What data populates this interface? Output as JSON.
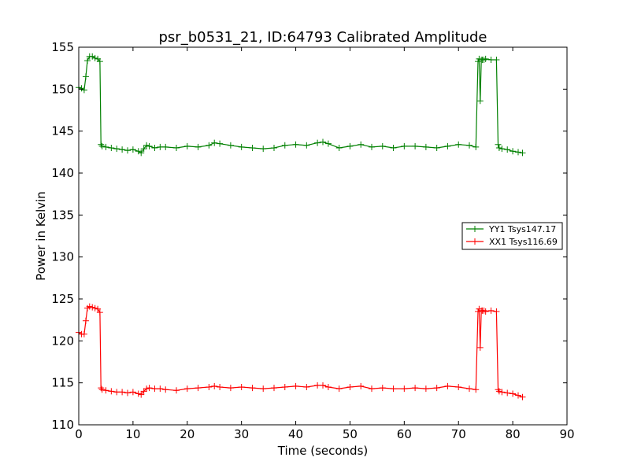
{
  "chart_data": {
    "type": "line",
    "title": "psr_b0531_21, ID:64793 Calibrated Amplitude",
    "xlabel": "Time (seconds)",
    "ylabel": "Power in Kelvin",
    "xlim": [
      0,
      90
    ],
    "ylim": [
      110,
      155
    ],
    "xticks": [
      "0",
      "10",
      "20",
      "30",
      "40",
      "50",
      "60",
      "70",
      "80",
      "90"
    ],
    "yticks": [
      "110",
      "115",
      "120",
      "125",
      "130",
      "135",
      "140",
      "145",
      "150",
      "155"
    ],
    "grid": false,
    "legend_position": "right",
    "series": [
      {
        "name": "YY1 Tsys147.17",
        "color": "#008000",
        "marker": "+",
        "x": [
          0.0,
          0.5,
          1.0,
          1.3,
          1.6,
          2.0,
          2.5,
          3.0,
          3.5,
          3.9,
          4.1,
          4.3,
          5,
          6,
          7,
          8,
          9,
          10,
          11,
          11.5,
          12,
          12.5,
          13,
          14,
          15,
          16,
          18,
          20,
          22,
          24,
          25,
          26,
          28,
          30,
          32,
          34,
          36,
          38,
          40,
          42,
          44,
          45,
          46,
          48,
          50,
          52,
          54,
          56,
          58,
          60,
          62,
          64,
          66,
          68,
          70,
          72,
          73.2,
          73.6,
          73.8,
          74.0,
          74.2,
          74.4,
          74.7,
          75,
          76,
          77,
          77.3,
          77.5,
          78,
          79,
          80,
          81,
          81.8
        ],
        "y": [
          150.2,
          150.1,
          149.9,
          151.5,
          153.4,
          153.9,
          153.9,
          153.7,
          153.6,
          153.3,
          143.4,
          143.2,
          143.1,
          143.0,
          142.9,
          142.8,
          142.7,
          142.8,
          142.6,
          142.4,
          142.9,
          143.3,
          143.2,
          143.0,
          143.1,
          143.1,
          143.0,
          143.2,
          143.1,
          143.3,
          143.6,
          143.5,
          143.3,
          143.1,
          143.0,
          142.9,
          143.0,
          143.3,
          143.4,
          143.3,
          143.6,
          143.7,
          143.5,
          143.0,
          143.2,
          143.4,
          143.1,
          143.2,
          143.0,
          143.2,
          143.2,
          143.1,
          143.0,
          143.2,
          143.4,
          143.3,
          143.1,
          153.3,
          153.6,
          148.6,
          153.5,
          153.5,
          153.5,
          153.6,
          153.5,
          153.5,
          143.4,
          143.0,
          142.9,
          142.8,
          142.6,
          142.5,
          142.4
        ]
      },
      {
        "name": "XX1 Tsys116.69",
        "color": "#ff0000",
        "marker": "+",
        "x": [
          0.0,
          0.5,
          1.0,
          1.3,
          1.6,
          2.0,
          2.5,
          3.0,
          3.5,
          3.9,
          4.1,
          4.3,
          5,
          6,
          7,
          8,
          9,
          10,
          11,
          11.5,
          12,
          12.5,
          13,
          14,
          15,
          16,
          18,
          20,
          22,
          24,
          25,
          26,
          28,
          30,
          32,
          34,
          36,
          38,
          40,
          42,
          44,
          45,
          46,
          48,
          50,
          52,
          54,
          56,
          58,
          60,
          62,
          64,
          66,
          68,
          70,
          72,
          73.2,
          73.6,
          73.8,
          74.0,
          74.2,
          74.4,
          74.7,
          75,
          76,
          77,
          77.3,
          77.5,
          78,
          79,
          80,
          81,
          81.8
        ],
        "y": [
          121.0,
          120.8,
          120.8,
          122.4,
          123.9,
          124.1,
          124.0,
          123.9,
          123.8,
          123.4,
          114.4,
          114.2,
          114.1,
          114.0,
          113.9,
          113.9,
          113.8,
          113.9,
          113.7,
          113.6,
          114.0,
          114.3,
          114.4,
          114.3,
          114.3,
          114.2,
          114.1,
          114.3,
          114.4,
          114.5,
          114.6,
          114.5,
          114.4,
          114.5,
          114.4,
          114.3,
          114.4,
          114.5,
          114.6,
          114.5,
          114.7,
          114.7,
          114.5,
          114.3,
          114.5,
          114.6,
          114.3,
          114.4,
          114.3,
          114.3,
          114.4,
          114.3,
          114.4,
          114.6,
          114.5,
          114.3,
          114.2,
          123.5,
          123.8,
          119.2,
          123.6,
          123.6,
          123.6,
          123.5,
          123.6,
          123.5,
          114.2,
          114.0,
          113.9,
          113.8,
          113.7,
          113.5,
          113.3
        ]
      }
    ]
  }
}
